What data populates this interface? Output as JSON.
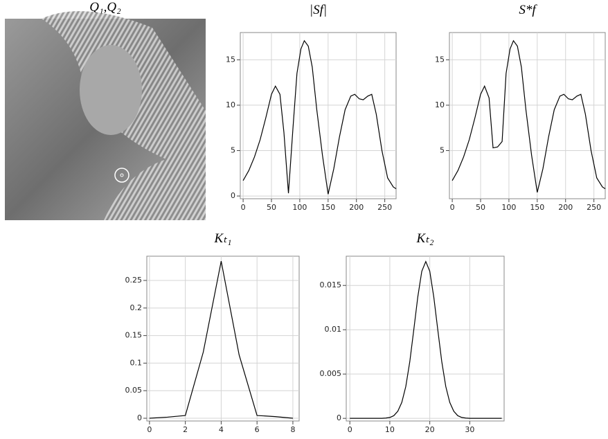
{
  "image": {
    "title": "Q₁,Q₂"
  },
  "chart_data": [
    {
      "type": "line",
      "title": "|Sf|",
      "color": "#000000",
      "grid": true,
      "xlim": [
        -5,
        270
      ],
      "ylim": [
        -0.3,
        18
      ],
      "xticks": [
        0,
        50,
        100,
        150,
        200,
        250
      ],
      "yticks": [
        0,
        5,
        10,
        15
      ],
      "x": [
        0,
        10,
        20,
        30,
        40,
        50,
        57,
        65,
        72,
        80,
        88,
        95,
        102,
        108,
        115,
        122,
        130,
        140,
        150,
        160,
        170,
        180,
        190,
        197,
        205,
        212,
        220,
        227,
        235,
        245,
        255,
        265,
        270
      ],
      "values": [
        1.7,
        2.8,
        4.3,
        6.2,
        8.6,
        11.2,
        12.1,
        11.2,
        7.0,
        0.3,
        7.5,
        13.5,
        16.2,
        17.1,
        16.5,
        14.2,
        9.5,
        4.5,
        0.2,
        3.0,
        6.5,
        9.5,
        11.0,
        11.2,
        10.7,
        10.6,
        11.0,
        11.2,
        9.0,
        5.0,
        2.0,
        1.0,
        0.8
      ]
    },
    {
      "type": "line",
      "title": "S*f",
      "color": "#000000",
      "grid": true,
      "xlim": [
        -5,
        270
      ],
      "ylim": [
        -0.3,
        18
      ],
      "xticks": [
        0,
        50,
        100,
        150,
        200,
        250
      ],
      "yticks": [
        5,
        10,
        15
      ],
      "x": [
        0,
        10,
        20,
        30,
        40,
        50,
        57,
        65,
        72,
        80,
        88,
        95,
        102,
        108,
        115,
        122,
        130,
        140,
        150,
        160,
        170,
        180,
        190,
        197,
        205,
        212,
        220,
        227,
        235,
        245,
        255,
        265,
        270
      ],
      "values": [
        1.7,
        2.8,
        4.3,
        6.2,
        8.6,
        11.2,
        12.1,
        10.8,
        5.3,
        5.4,
        6.0,
        13.5,
        16.2,
        17.1,
        16.5,
        14.2,
        9.5,
        4.5,
        0.4,
        3.0,
        6.5,
        9.5,
        11.0,
        11.2,
        10.7,
        10.6,
        11.0,
        11.2,
        9.0,
        5.0,
        2.0,
        1.0,
        0.8
      ]
    },
    {
      "type": "line",
      "title": "Kₜ₁",
      "color": "#000000",
      "grid": true,
      "xlim": [
        -0.15,
        8.35
      ],
      "ylim": [
        -0.005,
        0.294
      ],
      "xticks": [
        0,
        2,
        4,
        6,
        8
      ],
      "yticks": [
        0,
        0.05,
        0.1,
        0.15,
        0.2,
        0.25
      ],
      "x": [
        0,
        1,
        2,
        3,
        4,
        5,
        6,
        7,
        8
      ],
      "values": [
        0,
        0.002,
        0.005,
        0.12,
        0.285,
        0.115,
        0.005,
        0.003,
        0
      ]
    },
    {
      "type": "line",
      "title": "Kₜ₂",
      "color": "#000000",
      "grid": true,
      "xlim": [
        -0.9,
        38.6
      ],
      "ylim": [
        -0.0003,
        0.0183
      ],
      "xticks": [
        0,
        10,
        20,
        30
      ],
      "yticks": [
        0,
        0.005,
        0.01,
        0.015
      ],
      "x": [
        0,
        1,
        2,
        3,
        4,
        5,
        6,
        7,
        8,
        9,
        10,
        11,
        12,
        13,
        14,
        15,
        16,
        17,
        18,
        19,
        20,
        21,
        22,
        23,
        24,
        25,
        26,
        27,
        28,
        29,
        30,
        31,
        32,
        33,
        34,
        35,
        36,
        37,
        38
      ],
      "values": [
        0,
        0,
        0,
        0,
        0,
        0,
        0,
        0,
        0,
        3e-05,
        0.0001,
        0.0003,
        0.0008,
        0.0018,
        0.0036,
        0.0064,
        0.01,
        0.0137,
        0.0166,
        0.0177,
        0.0166,
        0.0137,
        0.01,
        0.0064,
        0.0036,
        0.0018,
        0.0008,
        0.0003,
        0.0001,
        3e-05,
        0,
        0,
        0,
        0,
        0,
        0,
        0,
        0,
        0
      ]
    }
  ]
}
